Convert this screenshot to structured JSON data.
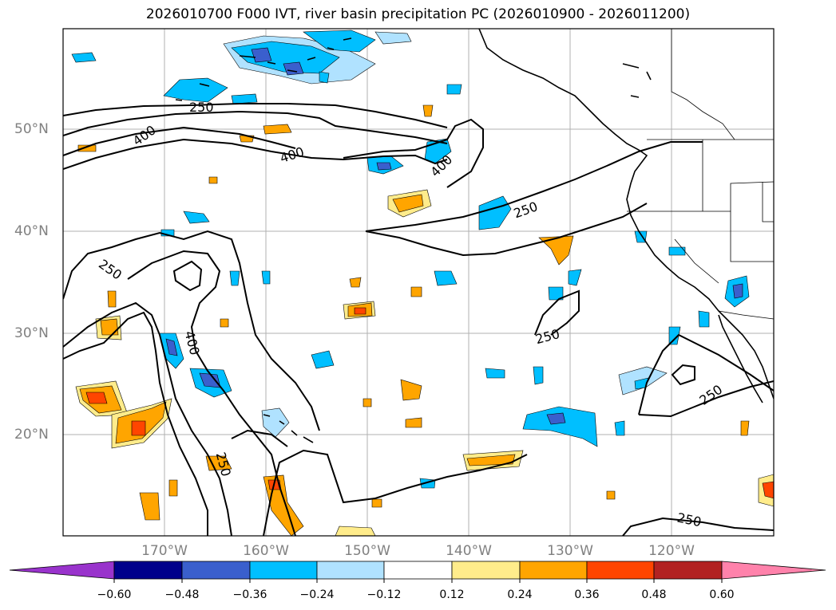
{
  "title": "2026010700 F000 IVT, river basin precipitation PC (2026010900 - 2026011200)",
  "latitude_labels": [
    "50°N",
    "40°N",
    "30°N",
    "20°N"
  ],
  "longitude_labels": [
    "170°W",
    "160°W",
    "150°W",
    "140°W",
    "130°W",
    "120°W"
  ],
  "contour_labels": [
    "250",
    "400",
    "400",
    "400",
    "250",
    "250",
    "400",
    "250",
    "250",
    "250",
    "250"
  ],
  "colorbar": {
    "tick_labels": [
      "−0.60",
      "−0.48",
      "−0.36",
      "−0.24",
      "−0.12",
      "0.12",
      "0.24",
      "0.36",
      "0.48",
      "0.60"
    ],
    "colors": [
      "#9933cc",
      "#00008b",
      "#3a5fcd",
      "#00bfff",
      "#b0e2ff",
      "#ffffff",
      "#ffec8b",
      "#ffa500",
      "#ff4500",
      "#b22222",
      "#ff82ab"
    ]
  }
}
